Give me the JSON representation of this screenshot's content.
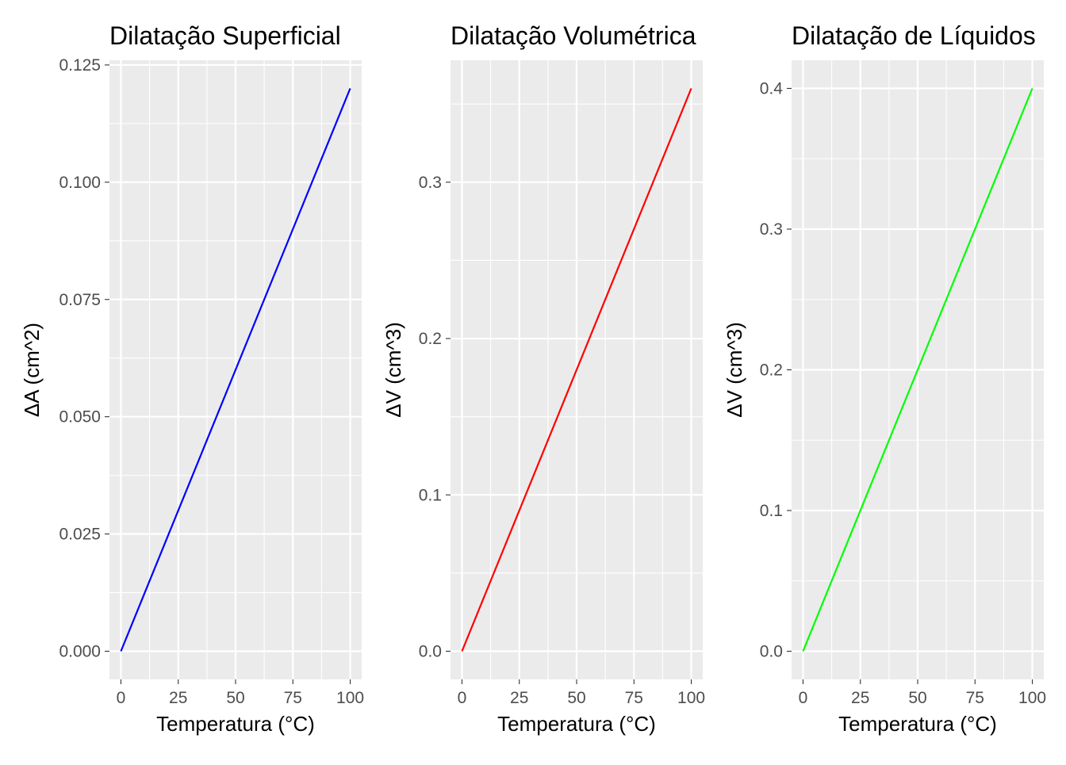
{
  "chart_data": [
    {
      "type": "line",
      "title": "Dilatação Superficial",
      "xlabel": "Temperatura (°C)",
      "ylabel": "ΔA (cm^2)",
      "x": [
        0,
        100
      ],
      "series": [
        {
          "values": [
            0,
            0.12
          ],
          "color": "#0000ff"
        }
      ],
      "xlim": [
        -5,
        105
      ],
      "ylim": [
        -0.006,
        0.126
      ],
      "xticks": [
        0,
        25,
        50,
        75,
        100
      ],
      "xtick_labels": [
        "0",
        "25",
        "50",
        "75",
        "100"
      ],
      "yticks": [
        0,
        0.025,
        0.05,
        0.075,
        0.1,
        0.125
      ],
      "ytick_labels": [
        "0.000",
        "0.025",
        "0.050",
        "0.075",
        "0.100",
        "0.125"
      ],
      "background": "#ebebeb",
      "grid": true
    },
    {
      "type": "line",
      "title": "Dilatação Volumétrica",
      "xlabel": "Temperatura (°C)",
      "ylabel": "ΔV (cm^3)",
      "x": [
        0,
        100
      ],
      "series": [
        {
          "values": [
            0,
            0.36
          ],
          "color": "#ff0000"
        }
      ],
      "xlim": [
        -5,
        105
      ],
      "ylim": [
        -0.018,
        0.378
      ],
      "xticks": [
        0,
        25,
        50,
        75,
        100
      ],
      "xtick_labels": [
        "0",
        "25",
        "50",
        "75",
        "100"
      ],
      "yticks": [
        0,
        0.1,
        0.2,
        0.3
      ],
      "ytick_labels": [
        "0.0",
        "0.1",
        "0.2",
        "0.3"
      ],
      "background": "#ebebeb",
      "grid": true
    },
    {
      "type": "line",
      "title": "Dilatação de Líquidos",
      "xlabel": "Temperatura (°C)",
      "ylabel": "ΔV (cm^3)",
      "x": [
        0,
        100
      ],
      "series": [
        {
          "values": [
            0,
            0.4
          ],
          "color": "#00ff00"
        }
      ],
      "xlim": [
        -5,
        105
      ],
      "ylim": [
        -0.02,
        0.42
      ],
      "xticks": [
        0,
        25,
        50,
        75,
        100
      ],
      "xtick_labels": [
        "0",
        "25",
        "50",
        "75",
        "100"
      ],
      "yticks": [
        0,
        0.1,
        0.2,
        0.3,
        0.4
      ],
      "ytick_labels": [
        "0.0",
        "0.1",
        "0.2",
        "0.3",
        "0.4"
      ],
      "background": "#ebebeb",
      "grid": true
    }
  ]
}
